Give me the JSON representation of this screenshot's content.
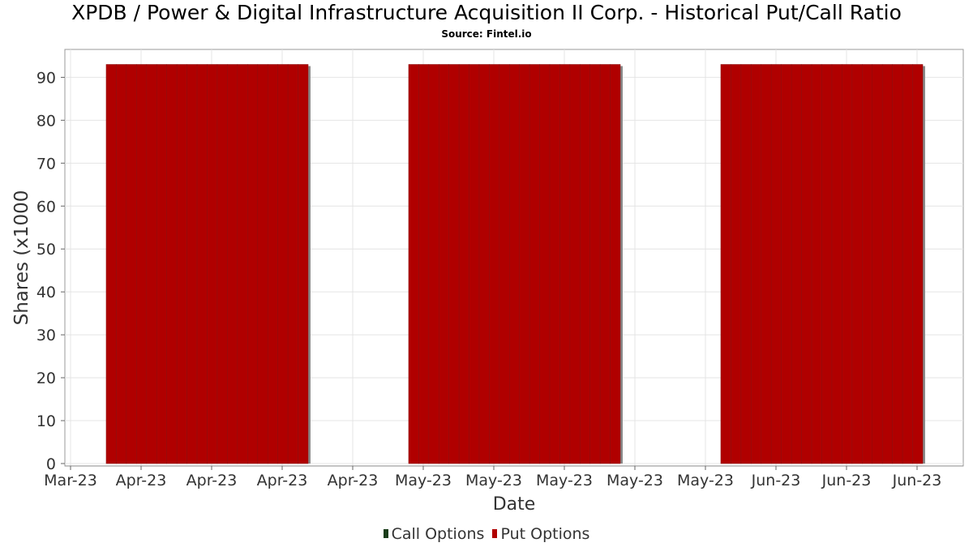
{
  "header": {
    "title": "XPDB / Power & Digital Infrastructure Acquisition II Corp. - Historical Put/Call Ratio",
    "subtitle": "Source: Fintel.io"
  },
  "legend": {
    "items": [
      {
        "label": "Call Options",
        "color": "#1a3d1a"
      },
      {
        "label": "Put Options",
        "color": "#b00000"
      }
    ]
  },
  "chart_data": {
    "type": "bar",
    "title": "XPDB / Power & Digital Infrastructure Acquisition II Corp. - Historical Put/Call Ratio",
    "xlabel": "Date",
    "ylabel": "Shares (x1000",
    "ylim": [
      0,
      96.5
    ],
    "yticks": [
      0,
      10,
      20,
      30,
      40,
      50,
      60,
      70,
      80,
      90
    ],
    "xticks": [
      "Mar-23",
      "Apr-23",
      "Apr-23",
      "Apr-23",
      "Apr-23",
      "May-23",
      "May-23",
      "May-23",
      "May-23",
      "May-23",
      "Jun-23",
      "Jun-23",
      "Jun-23"
    ],
    "grid": true,
    "legend_position": "bottom",
    "series": [
      {
        "name": "Call Options",
        "color": "#1a3d1a",
        "values": []
      },
      {
        "name": "Put Options",
        "color": "#b00000",
        "groups": [
          {
            "bars": 20,
            "value": 93
          },
          {
            "bars": 21,
            "value": 93
          },
          {
            "bars": 20,
            "value": 93
          }
        ]
      }
    ]
  }
}
